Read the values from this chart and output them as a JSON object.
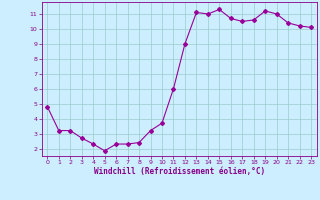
{
  "x": [
    0,
    1,
    2,
    3,
    4,
    5,
    6,
    7,
    8,
    9,
    10,
    11,
    12,
    13,
    14,
    15,
    16,
    17,
    18,
    19,
    20,
    21,
    22,
    23
  ],
  "y": [
    4.8,
    3.2,
    3.2,
    2.7,
    2.3,
    1.85,
    2.3,
    2.3,
    2.4,
    3.2,
    3.7,
    6.0,
    9.0,
    11.1,
    11.0,
    11.3,
    10.7,
    10.5,
    10.6,
    11.2,
    11.0,
    10.4,
    10.2,
    10.1
  ],
  "line_color": "#990099",
  "marker": "D",
  "marker_size": 2,
  "bg_color": "#cceeff",
  "grid_color": "#99cccc",
  "xlabel": "Windchill (Refroidissement éolien,°C)",
  "ylim": [
    1.5,
    11.8
  ],
  "xlim": [
    -0.5,
    23.5
  ],
  "yticks": [
    2,
    3,
    4,
    5,
    6,
    7,
    8,
    9,
    10,
    11
  ],
  "xticks": [
    0,
    1,
    2,
    3,
    4,
    5,
    6,
    7,
    8,
    9,
    10,
    11,
    12,
    13,
    14,
    15,
    16,
    17,
    18,
    19,
    20,
    21,
    22,
    23
  ],
  "tick_color": "#880088",
  "label_color": "#880088",
  "spine_color": "#880088"
}
